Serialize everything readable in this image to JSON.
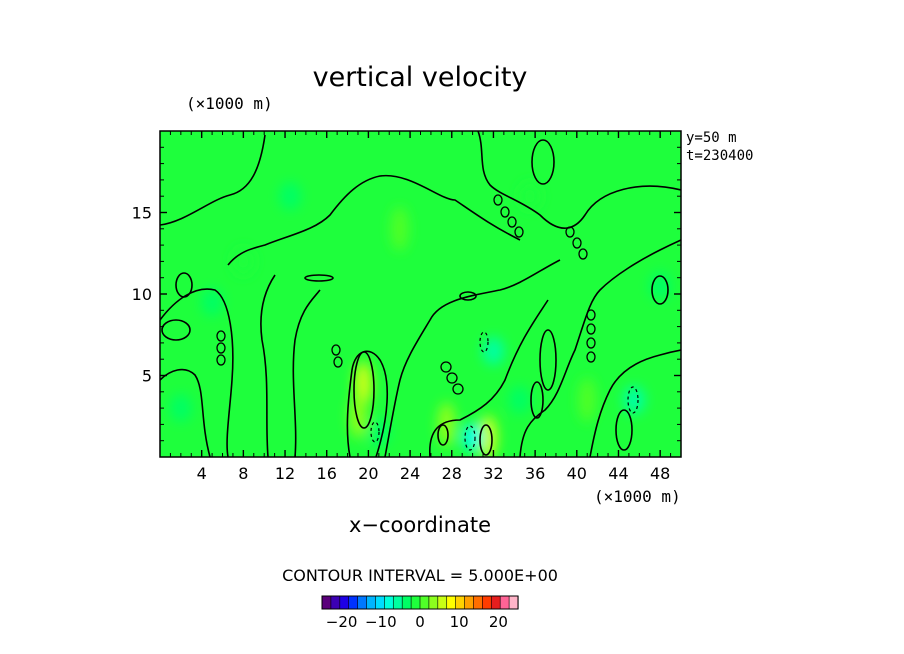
{
  "chart_data": {
    "type": "heatmap",
    "title": "vertical velocity",
    "xlabel": "x−coordinate",
    "ylabel": "",
    "x_unit_label": "(×1000 m)",
    "y_unit_label": "(×1000 m)",
    "annotations": [
      "y=50 m",
      "t=230400"
    ],
    "contour_interval_label": "CONTOUR INTERVAL = 5.000E+00",
    "contour_interval": 5.0,
    "xlim": [
      0,
      50
    ],
    "ylim": [
      0,
      20
    ],
    "x_ticks": [
      4,
      8,
      12,
      16,
      20,
      24,
      28,
      32,
      36,
      40,
      44,
      48
    ],
    "y_ticks": [
      5,
      10,
      15
    ],
    "x_tick_labels": [
      "4",
      "8",
      "12",
      "16",
      "20",
      "24",
      "28",
      "32",
      "36",
      "40",
      "44",
      "48"
    ],
    "y_tick_labels": [
      "5",
      "10",
      "15"
    ],
    "colorbar": {
      "range": [
        -25,
        25
      ],
      "tick_values": [
        -20,
        -10,
        0,
        10,
        20
      ],
      "tick_labels": [
        "−20",
        "−10",
        "0",
        "10",
        "20"
      ],
      "colors": [
        "#5a007a",
        "#3c00b4",
        "#1e00e6",
        "#0032ff",
        "#0078ff",
        "#00b4ff",
        "#00dcff",
        "#00ffdc",
        "#00ffa0",
        "#00ff64",
        "#1eff3c",
        "#50ff28",
        "#8cff1e",
        "#c8ff14",
        "#ffff00",
        "#ffd200",
        "#ffa000",
        "#ff6e00",
        "#ff3c00",
        "#e61e1e",
        "#ff6496",
        "#ffb4c8"
      ]
    },
    "background_value": 0,
    "features": [
      {
        "kind": "updraft",
        "x": 19.5,
        "y": 4.5,
        "peak": 6
      },
      {
        "kind": "updraft",
        "x": 19.0,
        "y": 2.5,
        "peak": 4
      },
      {
        "kind": "updraft",
        "x": 27.5,
        "y": 2.0,
        "peak": 3
      },
      {
        "kind": "updraft",
        "x": 31.5,
        "y": 1.2,
        "peak": 6
      },
      {
        "kind": "updraft",
        "x": 23.0,
        "y": 14.0,
        "peak": 2
      },
      {
        "kind": "updraft",
        "x": 41.0,
        "y": 3.5,
        "peak": 2
      },
      {
        "kind": "downdraft",
        "x": 30.0,
        "y": 1.2,
        "peak": -7
      },
      {
        "kind": "downdraft",
        "x": 32.0,
        "y": 6.5,
        "peak": -5
      },
      {
        "kind": "downdraft",
        "x": 45.5,
        "y": 3.5,
        "peak": -6
      },
      {
        "kind": "downdraft",
        "x": 35.5,
        "y": 16.0,
        "peak": -2
      },
      {
        "kind": "downdraft",
        "x": 12.5,
        "y": 16.0,
        "peak": -3
      },
      {
        "kind": "downdraft",
        "x": 5.0,
        "y": 9.5,
        "peak": -3
      },
      {
        "kind": "downdraft",
        "x": 48.0,
        "y": 10.5,
        "peak": -3
      },
      {
        "kind": "downdraft",
        "x": 2.0,
        "y": 3.0,
        "peak": -3
      },
      {
        "kind": "downdraft",
        "x": 8.0,
        "y": 12.0,
        "peak": -2
      },
      {
        "kind": "downdraft",
        "x": 21.0,
        "y": 1.5,
        "peak": -4
      },
      {
        "kind": "downdraft",
        "x": 34.5,
        "y": 3.5,
        "peak": -3
      }
    ]
  }
}
